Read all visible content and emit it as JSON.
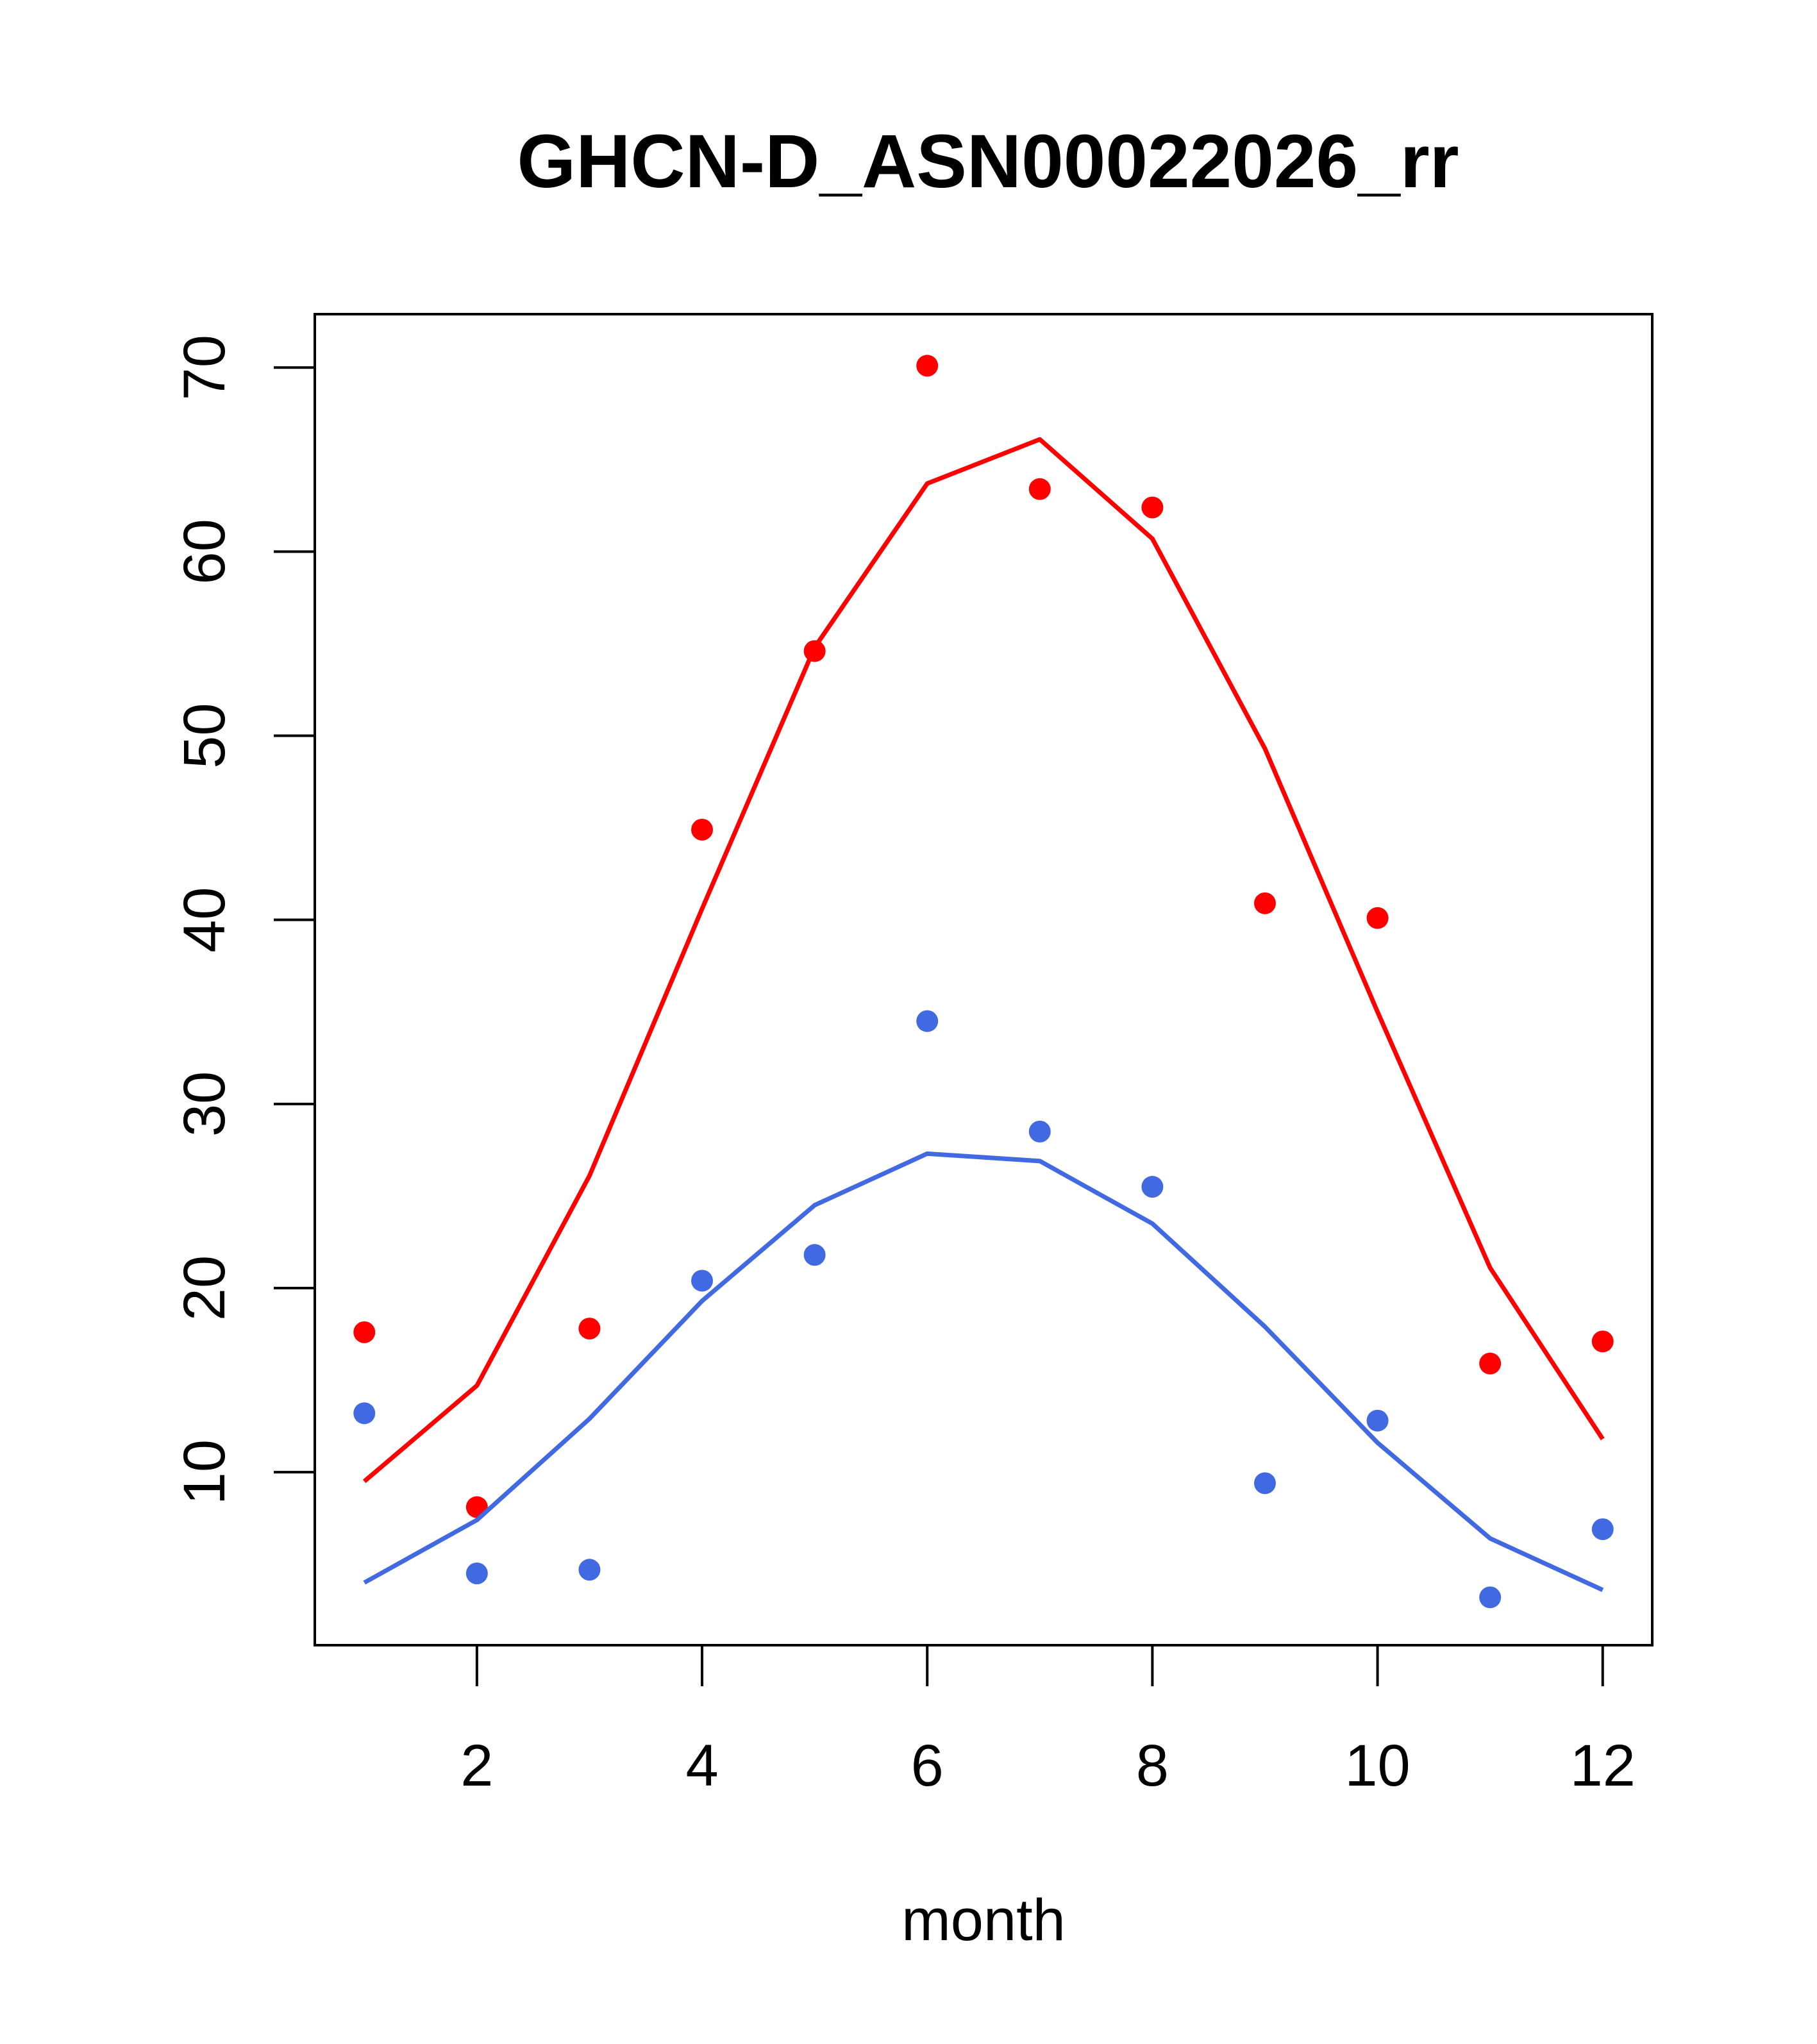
{
  "chart_data": {
    "type": "line",
    "title": "GHCN-D_ASN00022026_rr",
    "xlabel": "month",
    "ylabel": "",
    "xlim": [
      0.56,
      12.44
    ],
    "ylim": [
      0.6,
      72.9
    ],
    "x_ticks": [
      2,
      4,
      6,
      8,
      10,
      12
    ],
    "y_ticks": [
      10,
      20,
      30,
      40,
      50,
      60,
      70
    ],
    "x_tick_labels": [
      "2",
      "4",
      "6",
      "8",
      "10",
      "12"
    ],
    "y_tick_labels": [
      "10",
      "20",
      "30",
      "40",
      "50",
      "60",
      "70"
    ],
    "grid": false,
    "legend": "none",
    "x": [
      1,
      2,
      3,
      4,
      5,
      6,
      7,
      8,
      9,
      10,
      11,
      12
    ],
    "series": [
      {
        "color": "#ff0000",
        "points": [
          17.6,
          8.1,
          17.8,
          44.9,
          54.6,
          70.1,
          63.4,
          62.4,
          40.9,
          40.1,
          15.9,
          17.1
        ],
        "line": [
          9.5,
          14.7,
          26.1,
          40.6,
          54.8,
          63.7,
          66.1,
          60.7,
          49.3,
          35.0,
          21.1,
          11.8
        ]
      },
      {
        "color": "#4169e1",
        "points": [
          13.2,
          4.5,
          4.7,
          20.4,
          21.8,
          34.5,
          28.5,
          25.5,
          9.4,
          12.8,
          3.2,
          6.9
        ],
        "line": [
          4.0,
          7.4,
          12.9,
          19.3,
          24.5,
          27.3,
          26.9,
          23.5,
          17.9,
          11.6,
          6.4,
          3.6
        ]
      }
    ]
  }
}
